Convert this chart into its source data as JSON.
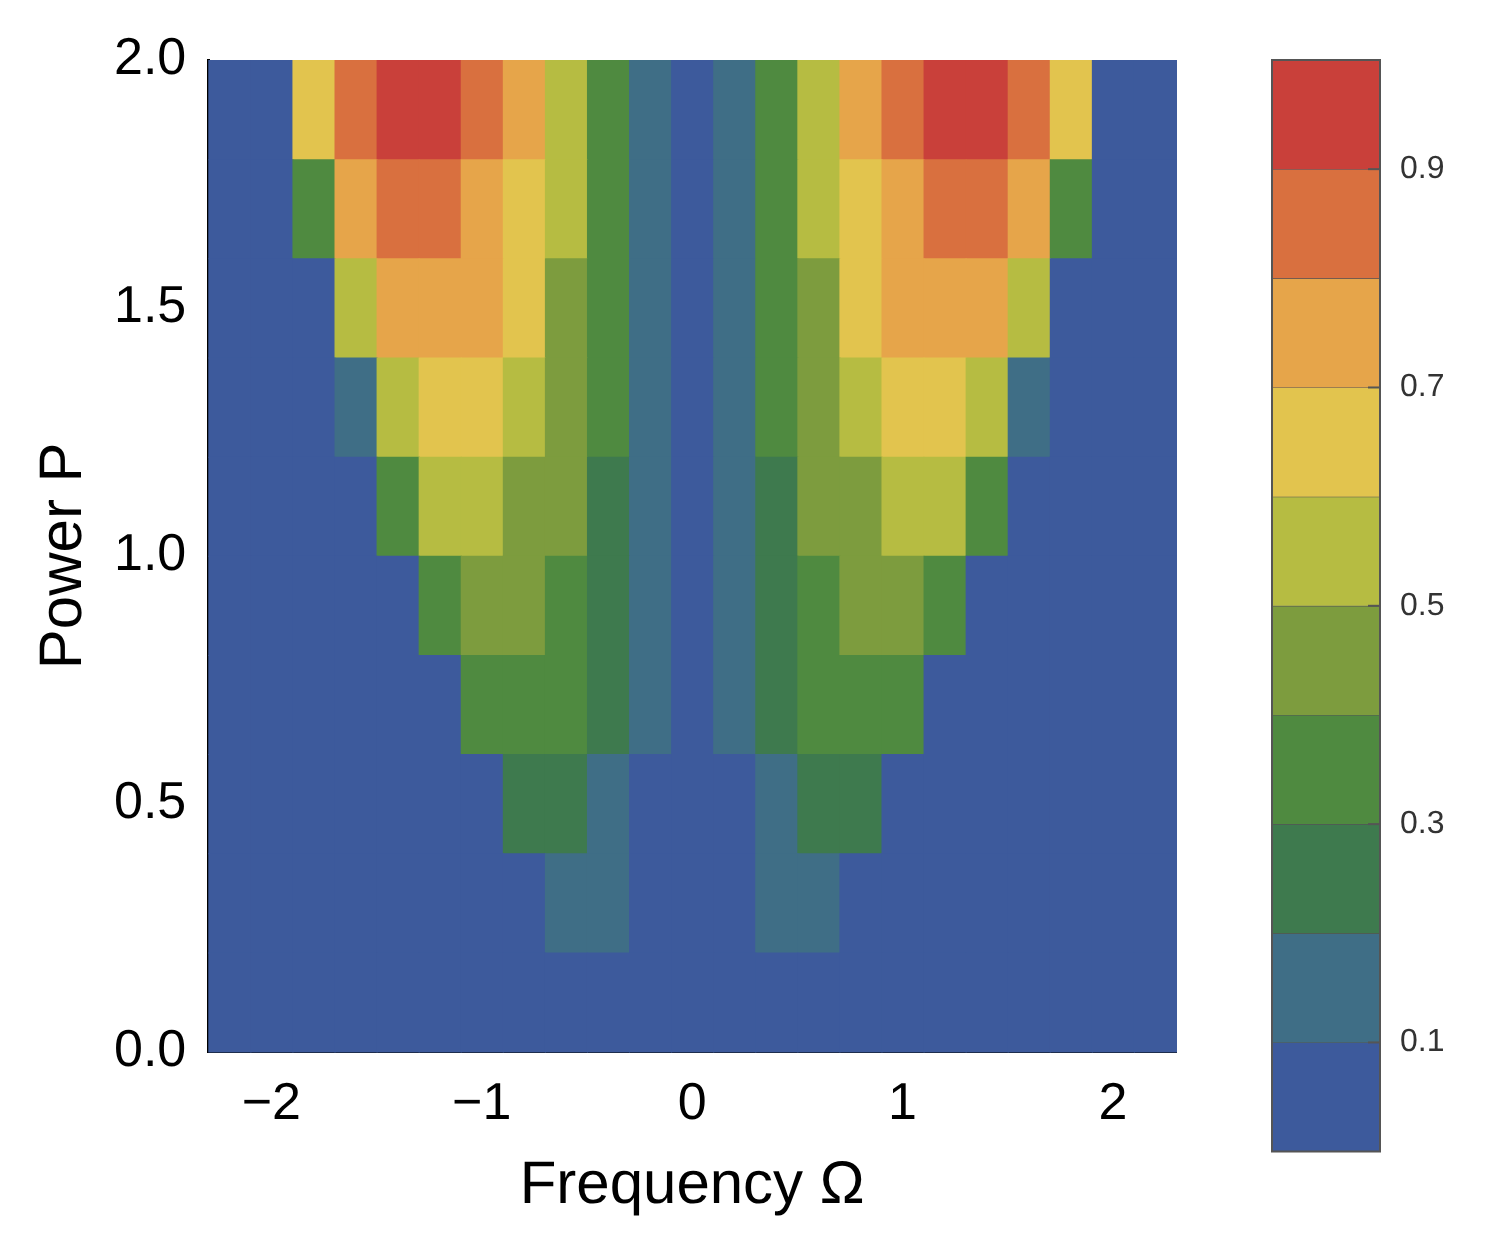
{
  "chart_data": {
    "type": "heatmap",
    "xlabel": "Frequency Ω",
    "ylabel": "Power P",
    "x": [
      -2.2,
      -2.0,
      -1.8,
      -1.6,
      -1.4,
      -1.2,
      -1.0,
      -0.8,
      -0.6,
      -0.4,
      -0.2,
      0,
      0.2,
      0.4,
      0.6,
      0.8,
      1.0,
      1.2,
      1.4,
      1.6,
      1.8,
      2.0,
      2.2
    ],
    "y": [
      1.9,
      1.7,
      1.5,
      1.3,
      1.1,
      0.9,
      0.7,
      0.5,
      0.3,
      0.1
    ],
    "cells": [
      [
        0.05,
        0.05,
        0.65,
        0.85,
        0.95,
        0.95,
        0.85,
        0.75,
        0.55,
        0.35,
        0.15,
        0.05,
        0.15,
        0.35,
        0.55,
        0.75,
        0.85,
        0.95,
        0.95,
        0.85,
        0.65,
        0.05,
        0.05
      ],
      [
        0.05,
        0.05,
        0.35,
        0.75,
        0.85,
        0.85,
        0.75,
        0.65,
        0.55,
        0.35,
        0.15,
        0.05,
        0.15,
        0.35,
        0.55,
        0.65,
        0.75,
        0.85,
        0.85,
        0.75,
        0.35,
        0.05,
        0.05
      ],
      [
        0.05,
        0.05,
        0.05,
        0.55,
        0.75,
        0.75,
        0.75,
        0.65,
        0.45,
        0.35,
        0.15,
        0.05,
        0.15,
        0.35,
        0.45,
        0.65,
        0.75,
        0.75,
        0.75,
        0.55,
        0.05,
        0.05,
        0.05
      ],
      [
        0.05,
        0.05,
        0.05,
        0.15,
        0.55,
        0.65,
        0.65,
        0.55,
        0.45,
        0.35,
        0.15,
        0.05,
        0.15,
        0.35,
        0.45,
        0.55,
        0.65,
        0.65,
        0.55,
        0.15,
        0.05,
        0.05,
        0.05
      ],
      [
        0.05,
        0.05,
        0.05,
        0.05,
        0.35,
        0.55,
        0.55,
        0.45,
        0.45,
        0.25,
        0.15,
        0.05,
        0.15,
        0.25,
        0.45,
        0.45,
        0.55,
        0.55,
        0.35,
        0.05,
        0.05,
        0.05,
        0.05
      ],
      [
        0.05,
        0.05,
        0.05,
        0.05,
        0.05,
        0.35,
        0.45,
        0.45,
        0.35,
        0.25,
        0.15,
        0.05,
        0.15,
        0.25,
        0.35,
        0.45,
        0.45,
        0.35,
        0.05,
        0.05,
        0.05,
        0.05,
        0.05
      ],
      [
        0.05,
        0.05,
        0.05,
        0.05,
        0.05,
        0.05,
        0.35,
        0.35,
        0.35,
        0.25,
        0.15,
        0.05,
        0.15,
        0.25,
        0.35,
        0.35,
        0.35,
        0.05,
        0.05,
        0.05,
        0.05,
        0.05,
        0.05
      ],
      [
        0.05,
        0.05,
        0.05,
        0.05,
        0.05,
        0.05,
        0.05,
        0.25,
        0.25,
        0.15,
        0.05,
        0.05,
        0.05,
        0.15,
        0.25,
        0.25,
        0.05,
        0.05,
        0.05,
        0.05,
        0.05,
        0.05,
        0.05
      ],
      [
        0.05,
        0.05,
        0.05,
        0.05,
        0.05,
        0.05,
        0.05,
        0.05,
        0.15,
        0.15,
        0.05,
        0.05,
        0.05,
        0.15,
        0.15,
        0.05,
        0.05,
        0.05,
        0.05,
        0.05,
        0.05,
        0.05,
        0.05
      ],
      [
        0.05,
        0.05,
        0.05,
        0.05,
        0.05,
        0.05,
        0.05,
        0.05,
        0.05,
        0.05,
        0.05,
        0.05,
        0.05,
        0.05,
        0.05,
        0.05,
        0.05,
        0.05,
        0.05,
        0.05,
        0.05,
        0.05,
        0.05
      ]
    ],
    "colors": [
      "#3d5a9c",
      "#3f6e86",
      "#3e7a4e",
      "#4f8a40",
      "#7d9c3e",
      "#b6bc42",
      "#e2c44e",
      "#e6a54a",
      "#d9703f",
      "#c9403a"
    ],
    "clim": [
      0,
      1
    ],
    "cticks": [
      0.1,
      0.3,
      0.5,
      0.7,
      0.9
    ],
    "xlim": [
      -2.3,
      2.3
    ],
    "xticks": [
      {
        "value": -2,
        "label": "−2"
      },
      {
        "value": -1,
        "label": "−1"
      },
      0,
      1,
      2
    ],
    "ylim": [
      0,
      2
    ],
    "yticks": [
      {
        "value": 0,
        "label": "0.0"
      },
      {
        "value": 0.5,
        "label": "0.5"
      },
      {
        "value": 1,
        "label": "1.0"
      },
      {
        "value": 1.5,
        "label": "1.5"
      },
      {
        "value": 2,
        "label": "2.0"
      }
    ],
    "grid": false,
    "legend": false
  }
}
